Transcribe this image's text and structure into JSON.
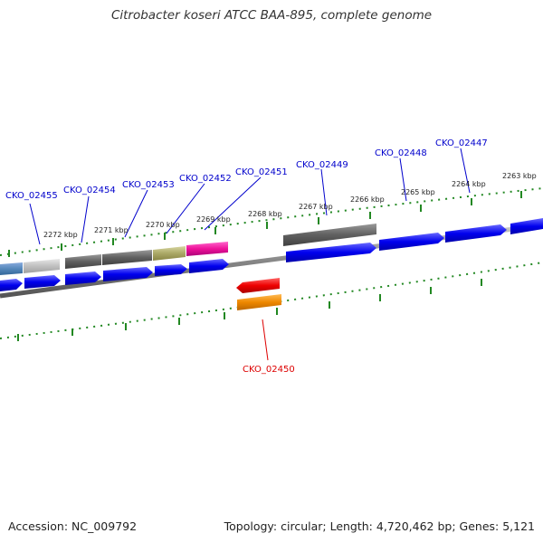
{
  "title": "Citrobacter koseri ATCC BAA-895, complete genome",
  "footer": {
    "accession": "Accession: NC_009792",
    "stats": "Topology: circular; Length: 4,720,462 bp; Genes: 5,121"
  },
  "colors": {
    "forward_cds": "#0000ee",
    "reverse_cds": "#ee0000",
    "reverse_orange": "#ee8800",
    "magenta": "#ee1199",
    "olive": "#aaa866",
    "dark_gray": "#606060",
    "light_gray": "#c0c0c0",
    "steel_blue": "#5588bb",
    "label_forward": "#0000cc",
    "label_reverse": "#dd0000",
    "tick": "#228822",
    "backbone": "#777777"
  },
  "kbp_labels": [
    "2272 kbp",
    "2271 kbp",
    "2270 kbp",
    "2269 kbp",
    "2268 kbp",
    "2267 kbp",
    "2266 kbp",
    "2265 kbp",
    "2264 kbp",
    "2263 kbp"
  ],
  "gene_labels": {
    "forward": [
      "CKO_02455",
      "CKO_02454",
      "CKO_02453",
      "CKO_02452",
      "CKO_02451",
      "CKO_02449",
      "CKO_02448",
      "CKO_02447"
    ],
    "reverse": [
      "CKO_02450"
    ]
  }
}
